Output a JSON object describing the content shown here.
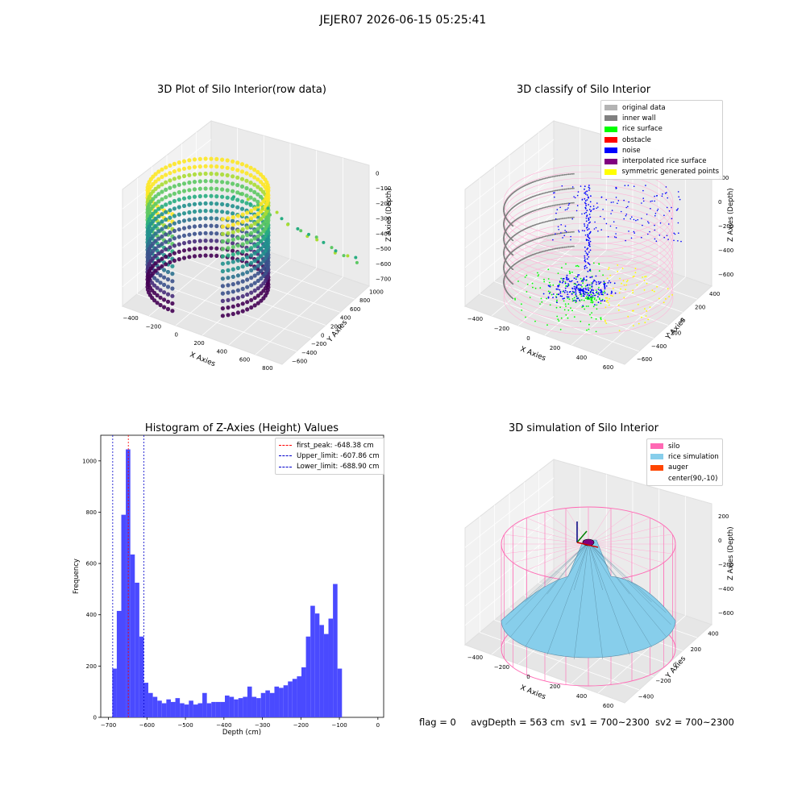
{
  "figure": {
    "suptitle": "JEJER07 2026-06-15 05:25:41",
    "status": {
      "flag": "flag = 0",
      "avg_depth": "avgDepth = 563 cm",
      "sv1": "sv1 = 700~2300",
      "sv2": "sv2 = 700~2300"
    }
  },
  "chart_data": [
    {
      "type": "scatter",
      "title": "3D Plot of Silo Interior(row data)",
      "xlabel": "X Axies",
      "ylabel": "Y Axies",
      "zlabel": "Z Axies (Depth)",
      "x_ticks": [
        "−400",
        "−200",
        "0",
        "200",
        "400",
        "600",
        "800"
      ],
      "y_ticks": [
        "−600",
        "−400",
        "−200",
        "0",
        "200",
        "400",
        "600",
        "800",
        "1000"
      ],
      "z_ticks": [
        "0",
        "−100",
        "−200",
        "−300",
        "−400",
        "−500",
        "−600",
        "−700"
      ],
      "colormap": "viridis",
      "grid": true
    },
    {
      "type": "scatter",
      "title": "3D classify of Silo Interior",
      "xlabel": "X Axies",
      "ylabel": "Y Axies",
      "zlabel": "Z Axies (Depth)",
      "x_ticks": [
        "−400",
        "−200",
        "0",
        "200",
        "400",
        "600"
      ],
      "y_ticks": [
        "−600",
        "−400",
        "−200",
        "0",
        "200",
        "400"
      ],
      "z_ticks": [
        "200",
        "0",
        "−200",
        "−400",
        "−600"
      ],
      "legend_position": "top-right",
      "legend": [
        {
          "label": "original data",
          "color": "#b3b3b3"
        },
        {
          "label": "inner wall",
          "color": "#808080"
        },
        {
          "label": "rice surface",
          "color": "#00ff00"
        },
        {
          "label": "obstacle",
          "color": "#ff0000"
        },
        {
          "label": "noise",
          "color": "#0000ff"
        },
        {
          "label": "interpolated rice surface",
          "color": "#800080"
        },
        {
          "label": "symmetric generated points",
          "color": "#ffff00"
        }
      ],
      "grid": true
    },
    {
      "type": "bar",
      "title": "Histogram of Z-Axies (Height) Values",
      "xlabel": "Depth (cm)",
      "ylabel": "Frequency",
      "bin_start": -690,
      "bin_width": 11.7,
      "values": [
        190,
        415,
        790,
        1045,
        635,
        525,
        315,
        135,
        95,
        80,
        65,
        55,
        70,
        60,
        75,
        55,
        50,
        65,
        50,
        55,
        95,
        55,
        60,
        60,
        60,
        85,
        80,
        70,
        75,
        80,
        120,
        80,
        75,
        95,
        105,
        95,
        120,
        115,
        125,
        140,
        150,
        160,
        195,
        315,
        435,
        405,
        360,
        325,
        385,
        520,
        190
      ],
      "bar_color": "#4a4aff",
      "xlim": [
        -720,
        15
      ],
      "ylim": [
        0,
        1100
      ],
      "x_ticks": [
        {
          "v": -700,
          "t": "−700"
        },
        {
          "v": -600,
          "t": "−600"
        },
        {
          "v": -500,
          "t": "−500"
        },
        {
          "v": -400,
          "t": "−400"
        },
        {
          "v": -300,
          "t": "−300"
        },
        {
          "v": -200,
          "t": "−200"
        },
        {
          "v": -100,
          "t": "−100"
        },
        {
          "v": 0,
          "t": "0"
        }
      ],
      "y_ticks": [
        {
          "v": 0,
          "t": "0"
        },
        {
          "v": 200,
          "t": "200"
        },
        {
          "v": 400,
          "t": "400"
        },
        {
          "v": 600,
          "t": "600"
        },
        {
          "v": 800,
          "t": "800"
        },
        {
          "v": 1000,
          "t": "1000"
        }
      ],
      "vlines": [
        {
          "label": "first_peak: -648.38 cm",
          "value": -648.38,
          "color": "#ff0000"
        },
        {
          "label": "Upper_limit: -607.86 cm",
          "value": -607.86,
          "color": "#0000cc"
        },
        {
          "label": "Lower_limit: -688.90 cm",
          "value": -688.9,
          "color": "#0000cc"
        }
      ],
      "legend_position": "top-right"
    },
    {
      "type": "area",
      "title": "3D simulation of Silo Interior",
      "xlabel": "X Axies",
      "ylabel": "Y Axies",
      "zlabel": "Z Axies (Depth)",
      "x_ticks": [
        "−400",
        "−200",
        "0",
        "200",
        "400",
        "600"
      ],
      "y_ticks": [
        "−400",
        "−200",
        "0",
        "200",
        "400"
      ],
      "z_ticks": [
        "200",
        "0",
        "−200",
        "−400",
        "−600"
      ],
      "legend_position": "top-right",
      "legend": [
        {
          "label": "silo",
          "color": "#ff69b4"
        },
        {
          "label": "rice simulation",
          "color": "#87ceeb"
        },
        {
          "label": "auger",
          "color": "#ff4500"
        },
        {
          "label": "center(90,-10)",
          "color": ""
        }
      ],
      "grid": true
    }
  ]
}
